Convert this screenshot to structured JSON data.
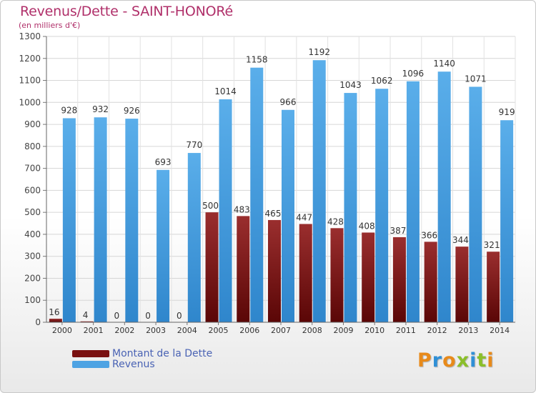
{
  "header": {
    "title": "Revenus/Dette - SAINT-HONORé",
    "subtitle": "(en milliers d'€)"
  },
  "legend": {
    "items": [
      {
        "label": "Montant de la Dette",
        "color": "#7a1010"
      },
      {
        "label": "Revenus",
        "color": "#4ea3e3"
      }
    ]
  },
  "logo": {
    "letters": [
      "P",
      "r",
      "o",
      "x",
      "i",
      "t",
      "i"
    ],
    "colors": [
      "#e88a1a",
      "#2f8fd6",
      "#e88a1a",
      "#8bbf2a",
      "#2f8fd6",
      "#8bbf2a",
      "#e88a1a"
    ]
  },
  "chart_data": {
    "type": "bar",
    "title": "Revenus/Dette - SAINT-HONORé",
    "subtitle": "(en milliers d'€)",
    "xlabel": "",
    "ylabel": "",
    "ylim": [
      0,
      1300
    ],
    "yticks": [
      0,
      100,
      200,
      300,
      400,
      500,
      600,
      700,
      800,
      900,
      1000,
      1100,
      1200,
      1300
    ],
    "grid": true,
    "categories": [
      "2000",
      "2001",
      "2002",
      "2003",
      "2004",
      "2005",
      "2006",
      "2007",
      "2008",
      "2009",
      "2010",
      "2011",
      "2012",
      "2013",
      "2014"
    ],
    "series": [
      {
        "name": "Montant de la Dette",
        "color": "#7a1010",
        "values": [
          16,
          4,
          0,
          0,
          0,
          500,
          483,
          465,
          447,
          428,
          408,
          387,
          366,
          344,
          321
        ]
      },
      {
        "name": "Revenus",
        "color": "#4ea3e3",
        "values": [
          928,
          932,
          926,
          693,
          770,
          1014,
          1158,
          966,
          1192,
          1043,
          1062,
          1096,
          1140,
          1071,
          919
        ]
      }
    ],
    "legend_position": "bottom-left"
  }
}
